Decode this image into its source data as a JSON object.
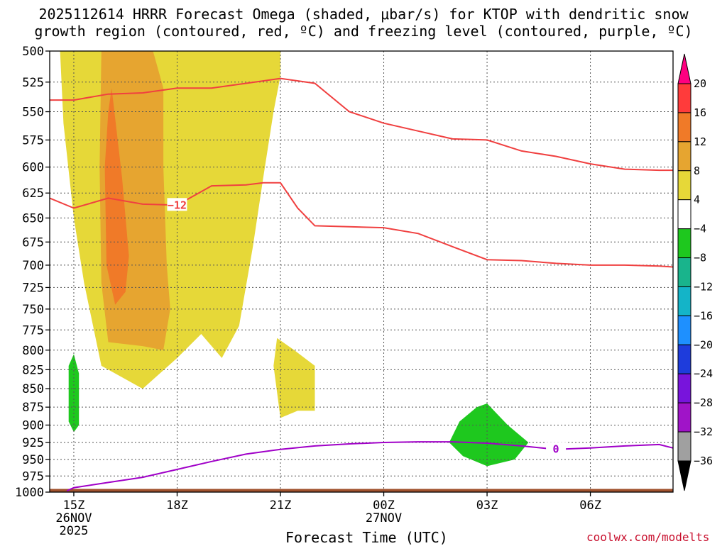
{
  "page": {
    "title_line1": "2025112614 HRRR Forecast Omega (shaded, μbar/s) for KTOP with dendritic snow",
    "title_line2": "growth region (contoured, red, ºC) and freezing level (contoured, purple, ºC)",
    "xlabel": "Forecast Time (UTC)",
    "credit": "coolwx.com/modelts"
  },
  "chart_data": {
    "type": "heatmap",
    "title": "2025112614 HRRR Forecast Omega (shaded, μbar/s) for KTOP with dendritic snow growth region (contoured, red, ºC) and freezing level (contoured, purple, ºC)",
    "xlabel": "Forecast Time (UTC)",
    "ylabel": "",
    "x_units": "hours from 14Z 26NOV2025",
    "xlim": [
      0.3,
      18.4
    ],
    "ylim": [
      1000,
      500
    ],
    "y_scale": "log-pressure",
    "grid": true,
    "x_ticks": [
      {
        "x": 1,
        "label": "15Z",
        "sub1": "26NOV",
        "sub2": "2025"
      },
      {
        "x": 4,
        "label": "18Z",
        "sub1": "",
        "sub2": ""
      },
      {
        "x": 7,
        "label": "21Z",
        "sub1": "",
        "sub2": ""
      },
      {
        "x": 10,
        "label": "00Z",
        "sub1": "27NOV",
        "sub2": ""
      },
      {
        "x": 13,
        "label": "03Z",
        "sub1": "",
        "sub2": ""
      },
      {
        "x": 16,
        "label": "06Z",
        "sub1": "",
        "sub2": ""
      }
    ],
    "y_ticks": [
      500,
      525,
      550,
      575,
      600,
      625,
      650,
      675,
      700,
      725,
      750,
      775,
      800,
      825,
      850,
      875,
      900,
      925,
      950,
      975,
      1000
    ],
    "colorbar": {
      "ticks": [
        "20",
        "16",
        "12",
        "8",
        "4",
        "−4",
        "−8",
        "−12",
        "−16",
        "−20",
        "−24",
        "−28",
        "−32",
        "−36"
      ],
      "colors": [
        "#ff0080",
        "#ff3b3b",
        "#f07a28",
        "#e6a530",
        "#e6d838",
        "#ffffff",
        "#1ec81e",
        "#19b48c",
        "#14b4c8",
        "#1e90ff",
        "#1e3cdc",
        "#7814dc",
        "#a014c8",
        "#a0a0a0",
        "#000000"
      ]
    },
    "fills": [
      {
        "name": "omega 4 to 8",
        "color": "#e6d838",
        "points": [
          [
            0.6,
            500
          ],
          [
            7.0,
            500
          ],
          [
            7.0,
            520
          ],
          [
            6.8,
            550
          ],
          [
            6.5,
            610
          ],
          [
            6.2,
            680
          ],
          [
            5.8,
            770
          ],
          [
            5.3,
            810
          ],
          [
            4.7,
            780
          ],
          [
            4.0,
            810
          ],
          [
            3.0,
            850
          ],
          [
            1.8,
            820
          ],
          [
            1.3,
            720
          ],
          [
            1.0,
            650
          ],
          [
            0.7,
            560
          ]
        ]
      },
      {
        "name": "omega 8 to 12",
        "color": "#e6a530",
        "points": [
          [
            1.8,
            500
          ],
          [
            3.3,
            500
          ],
          [
            3.6,
            530
          ],
          [
            3.6,
            600
          ],
          [
            3.7,
            700
          ],
          [
            3.8,
            750
          ],
          [
            3.6,
            800
          ],
          [
            3.0,
            795
          ],
          [
            2.0,
            790
          ],
          [
            1.8,
            720
          ],
          [
            1.75,
            600
          ]
        ]
      },
      {
        "name": "omega 12 to 16",
        "color": "#f07a28",
        "points": [
          [
            2.1,
            530
          ],
          [
            2.4,
            610
          ],
          [
            2.6,
            690
          ],
          [
            2.5,
            730
          ],
          [
            2.2,
            745
          ],
          [
            1.95,
            700
          ],
          [
            1.9,
            600
          ],
          [
            2.0,
            550
          ]
        ]
      },
      {
        "name": "omega 4 to 8",
        "color": "#e6d838",
        "points": [
          [
            6.9,
            785
          ],
          [
            7.4,
            800
          ],
          [
            8.0,
            820
          ],
          [
            8.0,
            880
          ],
          [
            7.5,
            880
          ],
          [
            7.0,
            890
          ],
          [
            6.8,
            820
          ]
        ]
      },
      {
        "name": "omega -4 to -8",
        "color": "#1ec81e",
        "points": [
          [
            1.0,
            805
          ],
          [
            1.15,
            830
          ],
          [
            1.15,
            900
          ],
          [
            1.0,
            910
          ],
          [
            0.85,
            895
          ],
          [
            0.85,
            820
          ]
        ]
      },
      {
        "name": "omega -4 to -8",
        "color": "#1ec81e",
        "points": [
          [
            13.0,
            870
          ],
          [
            13.6,
            900
          ],
          [
            14.2,
            925
          ],
          [
            13.8,
            950
          ],
          [
            13.0,
            960
          ],
          [
            12.3,
            945
          ],
          [
            11.9,
            925
          ],
          [
            12.2,
            895
          ],
          [
            12.7,
            875
          ]
        ]
      },
      {
        "name": "surface",
        "color": "#a0522d",
        "points": [
          [
            0.3,
            995
          ],
          [
            18.4,
            995
          ],
          [
            18.4,
            1000
          ],
          [
            0.3,
            1000
          ]
        ]
      }
    ],
    "series": [
      {
        "name": "",
        "color": "#f04040",
        "x": [
          0.3,
          1.0,
          2.0,
          3.0,
          4.0,
          5.0,
          6.0,
          7.0,
          8.0,
          9.0,
          10.0,
          11.0,
          12.0,
          13.0,
          14.0,
          15.0,
          16.0,
          17.0,
          18.0,
          18.4
        ],
        "y": [
          540,
          540,
          535,
          534,
          530,
          530,
          526,
          522,
          526,
          550,
          560,
          567,
          574,
          575,
          585,
          590,
          597,
          602,
          603,
          603
        ]
      },
      {
        "name": "",
        "color": "#f04040",
        "x": [
          0.3,
          1.0,
          2.0,
          3.0,
          4.0,
          5.0,
          6.0,
          6.5,
          7.0,
          7.5,
          8.0,
          9.0,
          10.0,
          11.0,
          12.0,
          13.0,
          14.0,
          15.0,
          16.0,
          17.0,
          18.0,
          18.4
        ],
        "y": [
          630,
          640,
          630,
          636,
          637,
          618,
          617,
          615,
          615,
          640,
          658,
          659,
          660,
          666,
          680,
          694,
          695,
          698,
          700,
          700,
          701,
          702
        ]
      },
      {
        "name": "",
        "color": "#a000c8",
        "x": [
          0.8,
          1.0,
          2.0,
          3.0,
          4.0,
          5.0,
          6.0,
          7.0,
          8.0,
          9.0,
          10.0,
          11.0,
          12.0,
          13.0,
          14.0,
          15.0,
          16.0,
          17.0,
          18.0,
          18.4
        ],
        "y": [
          998,
          993,
          985,
          977,
          965,
          953,
          942,
          935,
          930,
          927,
          925,
          924,
          924,
          926,
          930,
          935,
          933,
          930,
          928,
          933
        ]
      }
    ],
    "contour_labels": [
      {
        "x": 4.0,
        "y": 637,
        "text": "−12",
        "color": "#f04040"
      },
      {
        "x": 15.0,
        "y": 935,
        "text": "0",
        "color": "#a000c8"
      }
    ]
  }
}
